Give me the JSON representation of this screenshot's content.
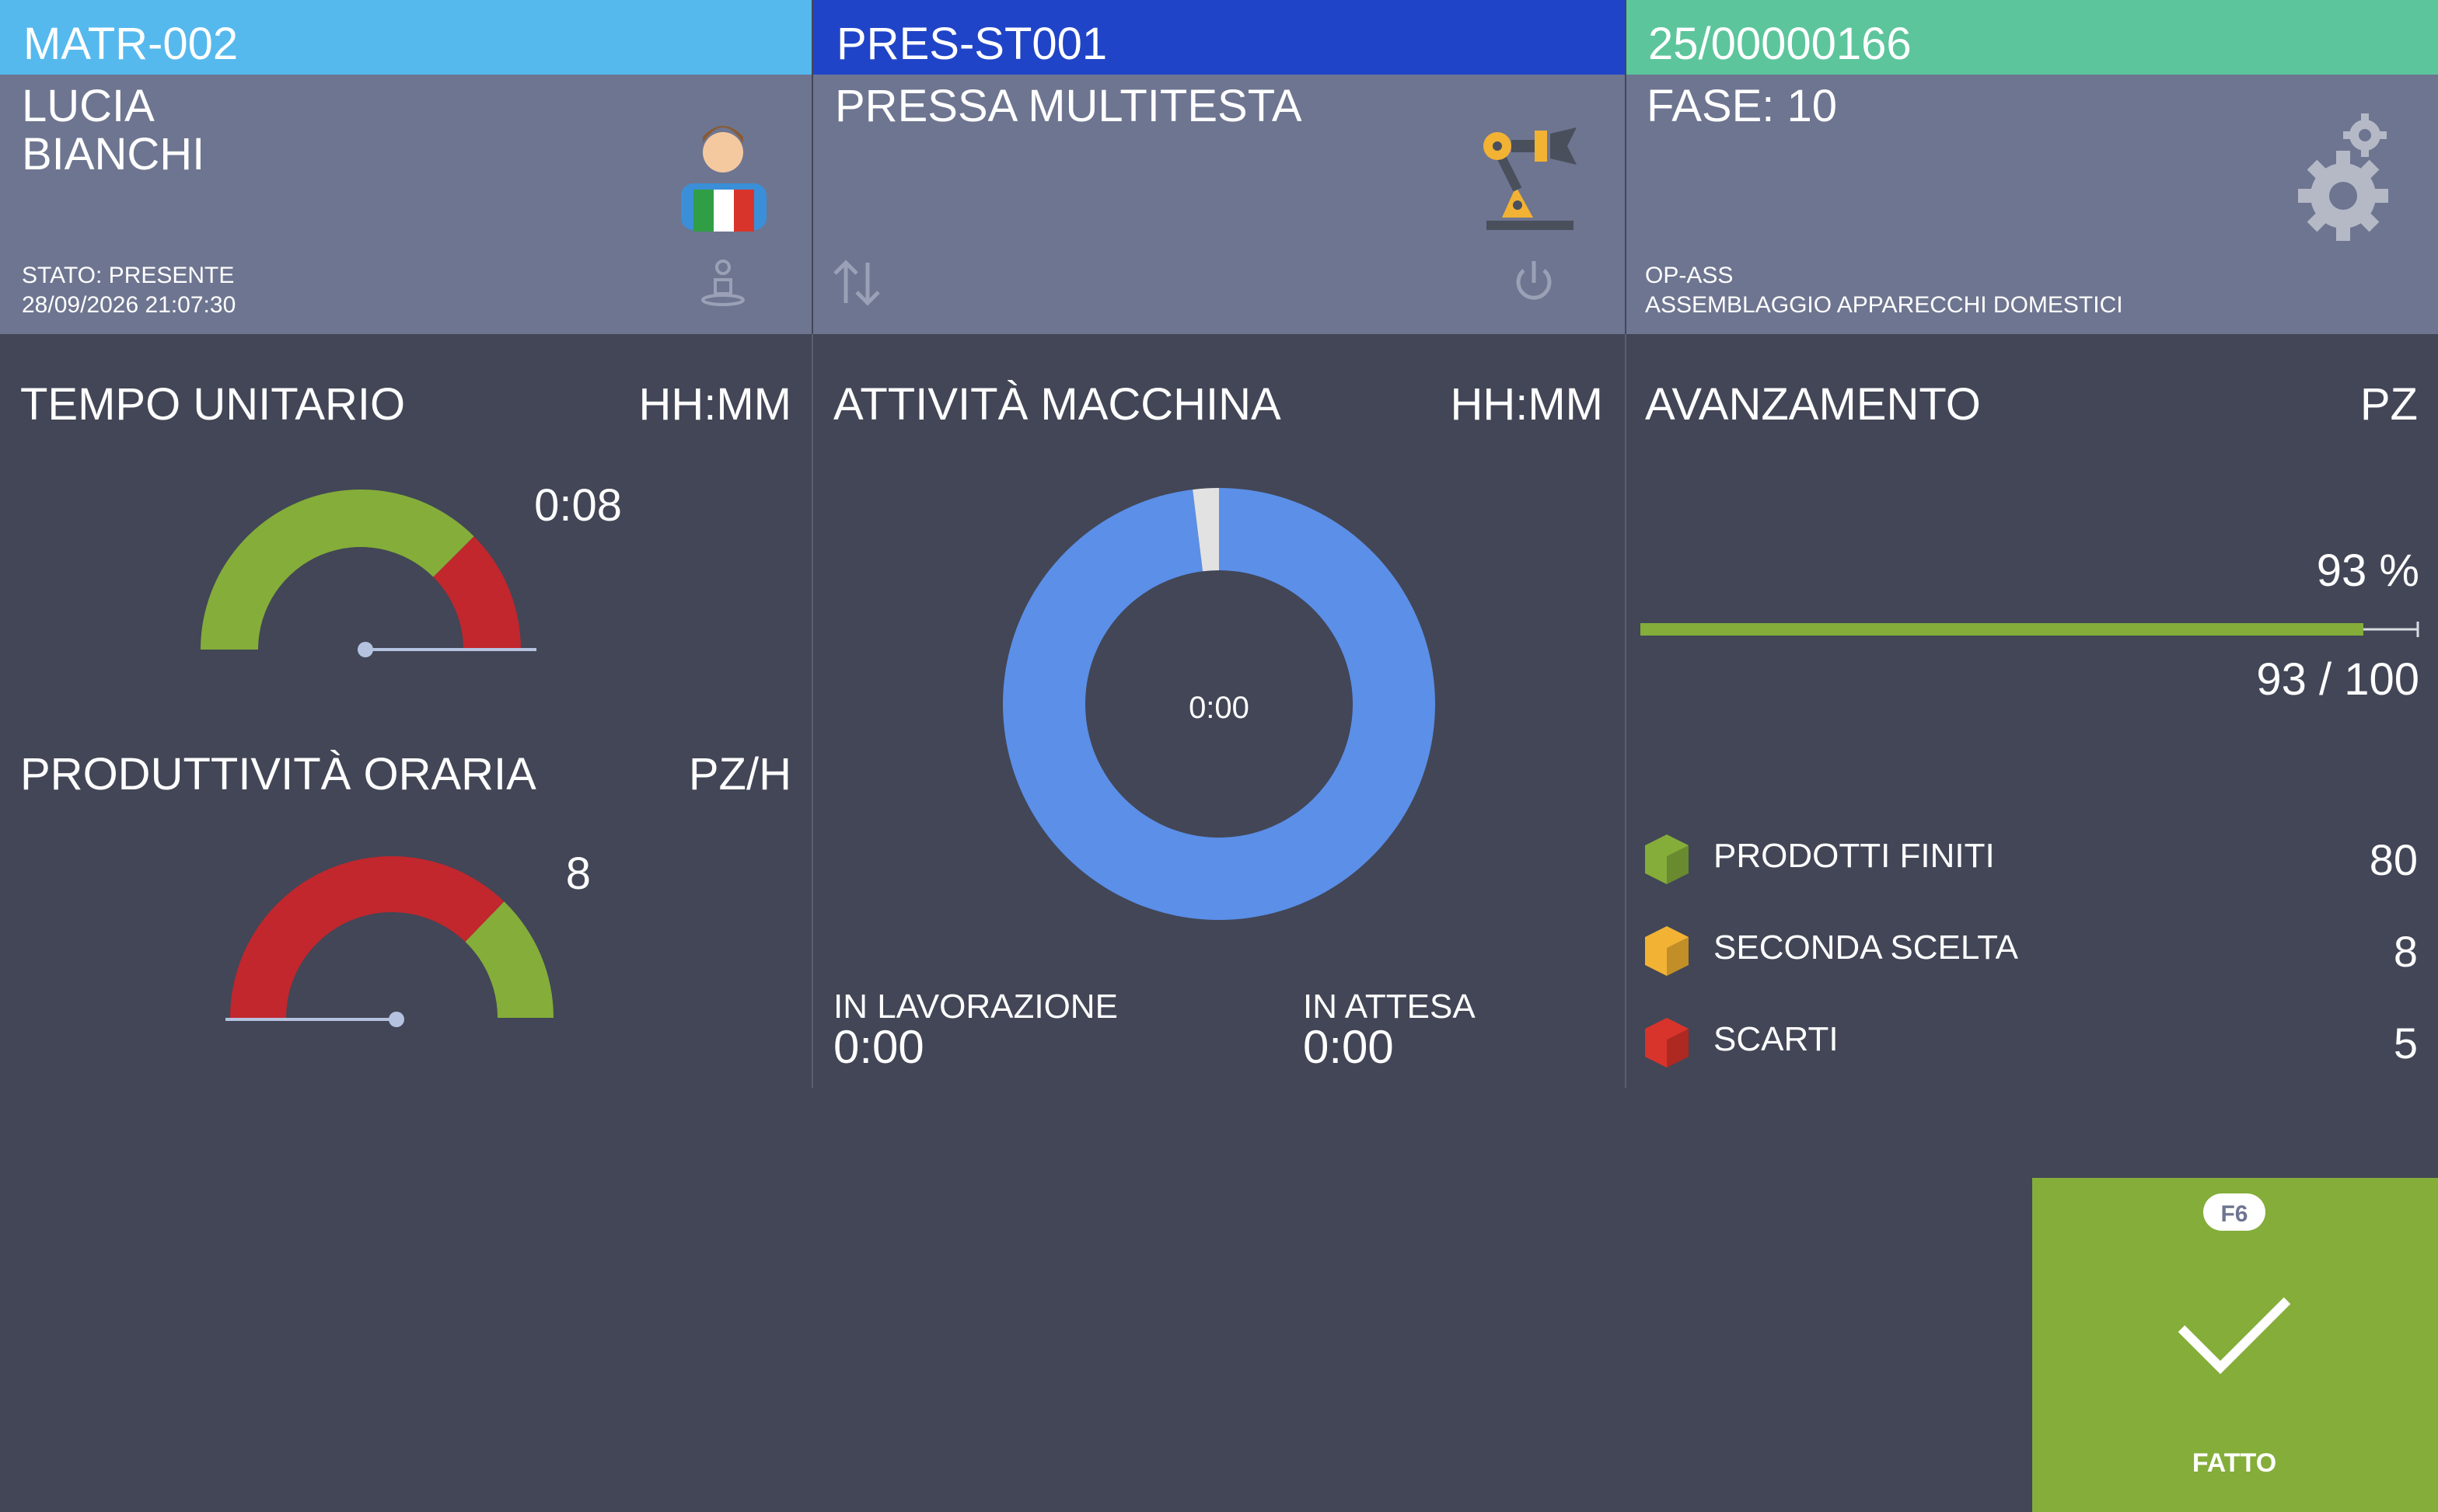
{
  "operator": {
    "code": "MATR-002",
    "name_line1": "LUCIA",
    "name_line2": "BIANCHI",
    "status": "STATO: PRESENTE",
    "timestamp": "28/09/2026 21:07:30"
  },
  "machine": {
    "code": "PRES-ST001",
    "name": "PRESSA MULTITESTA"
  },
  "order": {
    "code": "25/00000166",
    "phase": "FASE: 10",
    "operation_code": "OP-ASS",
    "operation_name": "ASSEMBLAGGIO APPARECCHI DOMESTICI"
  },
  "unit_time": {
    "title": "TEMPO UNITARIO",
    "unit": "HH:MM",
    "value": "0:08"
  },
  "productivity": {
    "title": "PRODUTTIVITÀ ORARIA",
    "unit": "PZ/H",
    "value": 8
  },
  "machine_activity": {
    "title": "ATTIVITÀ MACCHINA",
    "unit": "HH:MM",
    "center": "0:00",
    "working_label": "IN LAVORAZIONE",
    "working": "0:00",
    "waiting_label": "IN ATTESA",
    "waiting": "0:00"
  },
  "progress": {
    "title": "AVANZAMENTO",
    "unit": "PZ",
    "percent_label": "93 %",
    "done": 93,
    "total": 100,
    "count_label": "93 / 100",
    "items": [
      {
        "label": "PRODOTTI FINITI",
        "value": 80
      },
      {
        "label": "SECONDA SCELTA",
        "value": 8
      },
      {
        "label": "SCARTI",
        "value": 5
      }
    ]
  },
  "action": {
    "key": "F6",
    "label": "FATTO"
  }
}
